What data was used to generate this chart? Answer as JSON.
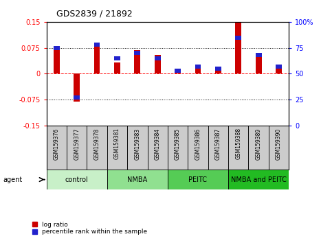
{
  "title": "GDS2839 / 21892",
  "samples": [
    "GSM159376",
    "GSM159377",
    "GSM159378",
    "GSM159381",
    "GSM159383",
    "GSM159384",
    "GSM159385",
    "GSM159386",
    "GSM159387",
    "GSM159388",
    "GSM159389",
    "GSM159390"
  ],
  "log_ratio": [
    0.075,
    -0.08,
    0.09,
    0.033,
    0.068,
    0.055,
    0.008,
    0.022,
    0.018,
    0.15,
    0.06,
    0.025
  ],
  "percentile_rank": [
    75,
    27,
    78,
    65,
    70,
    65,
    53,
    57,
    55,
    85,
    68,
    57
  ],
  "groups": [
    {
      "label": "control",
      "indices": [
        0,
        1,
        2
      ],
      "color": "#c8f0c8"
    },
    {
      "label": "NMBA",
      "indices": [
        3,
        4,
        5
      ],
      "color": "#90e090"
    },
    {
      "label": "PEITC",
      "indices": [
        6,
        7,
        8
      ],
      "color": "#55cc55"
    },
    {
      "label": "NMBA and PEITC",
      "indices": [
        9,
        10,
        11
      ],
      "color": "#22bb22"
    }
  ],
  "ylim_left": [
    -0.15,
    0.15
  ],
  "ylim_right": [
    0,
    100
  ],
  "yticks_left": [
    -0.15,
    -0.075,
    0,
    0.075,
    0.15
  ],
  "yticks_right": [
    0,
    25,
    50,
    75,
    100
  ],
  "ytick_labels_left": [
    "-0.15",
    "-0.075",
    "0",
    "0.075",
    "0.15"
  ],
  "ytick_labels_right": [
    "0",
    "25",
    "50",
    "75",
    "100%"
  ],
  "bar_color_red": "#cc0000",
  "bar_color_blue": "#2222cc",
  "background_plot": "#ffffff",
  "background_samples": "#cccccc",
  "agent_label": "agent",
  "legend_red": "log ratio",
  "legend_blue": "percentile rank within the sample",
  "bar_width": 0.3,
  "blue_bar_height": 0.012
}
